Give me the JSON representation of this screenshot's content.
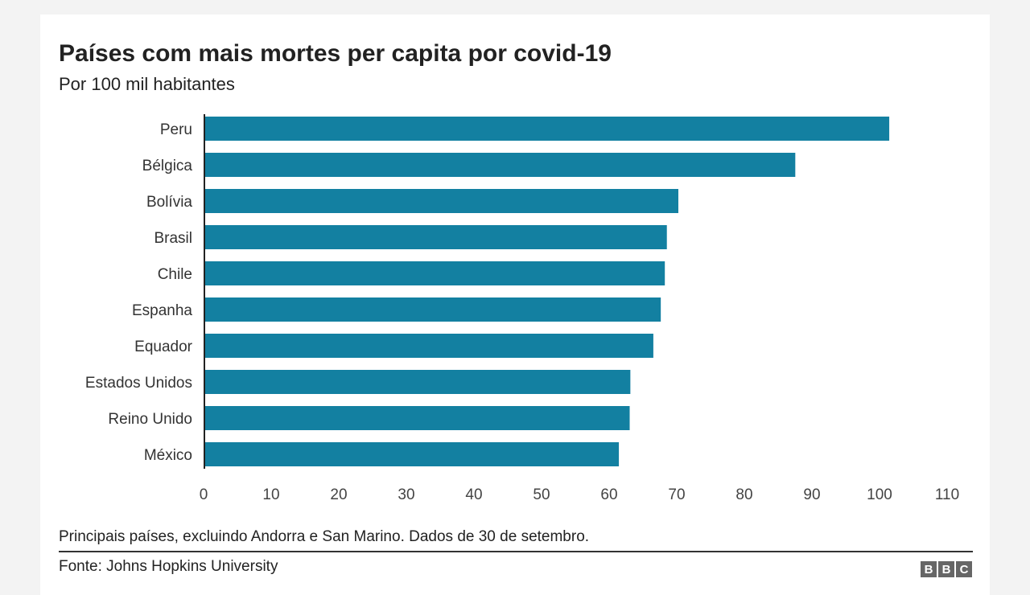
{
  "chart_data": {
    "type": "bar",
    "orientation": "horizontal",
    "title": "Países com mais mortes per capita por covid-19",
    "subtitle": "Por 100 mil habitantes",
    "categories": [
      "Peru",
      "Bélgica",
      "Bolívia",
      "Brasil",
      "Chile",
      "Espanha",
      "Equador",
      "Estados Unidos",
      "Reino Unido",
      "México"
    ],
    "values": [
      101.2,
      87.3,
      70.0,
      68.3,
      68.0,
      67.4,
      66.3,
      62.9,
      62.8,
      61.2
    ],
    "xlim": [
      0,
      110
    ],
    "xticks": [
      "0",
      "10",
      "20",
      "30",
      "40",
      "50",
      "60",
      "70",
      "80",
      "90",
      "100",
      "110"
    ],
    "grid": false,
    "bar_color": "#1380a1",
    "note": "Principais países, excluindo Andorra e San Marino. Dados de 30 de setembro.",
    "source": "Fonte: Johns Hopkins University"
  },
  "logo": [
    "B",
    "B",
    "C"
  ]
}
